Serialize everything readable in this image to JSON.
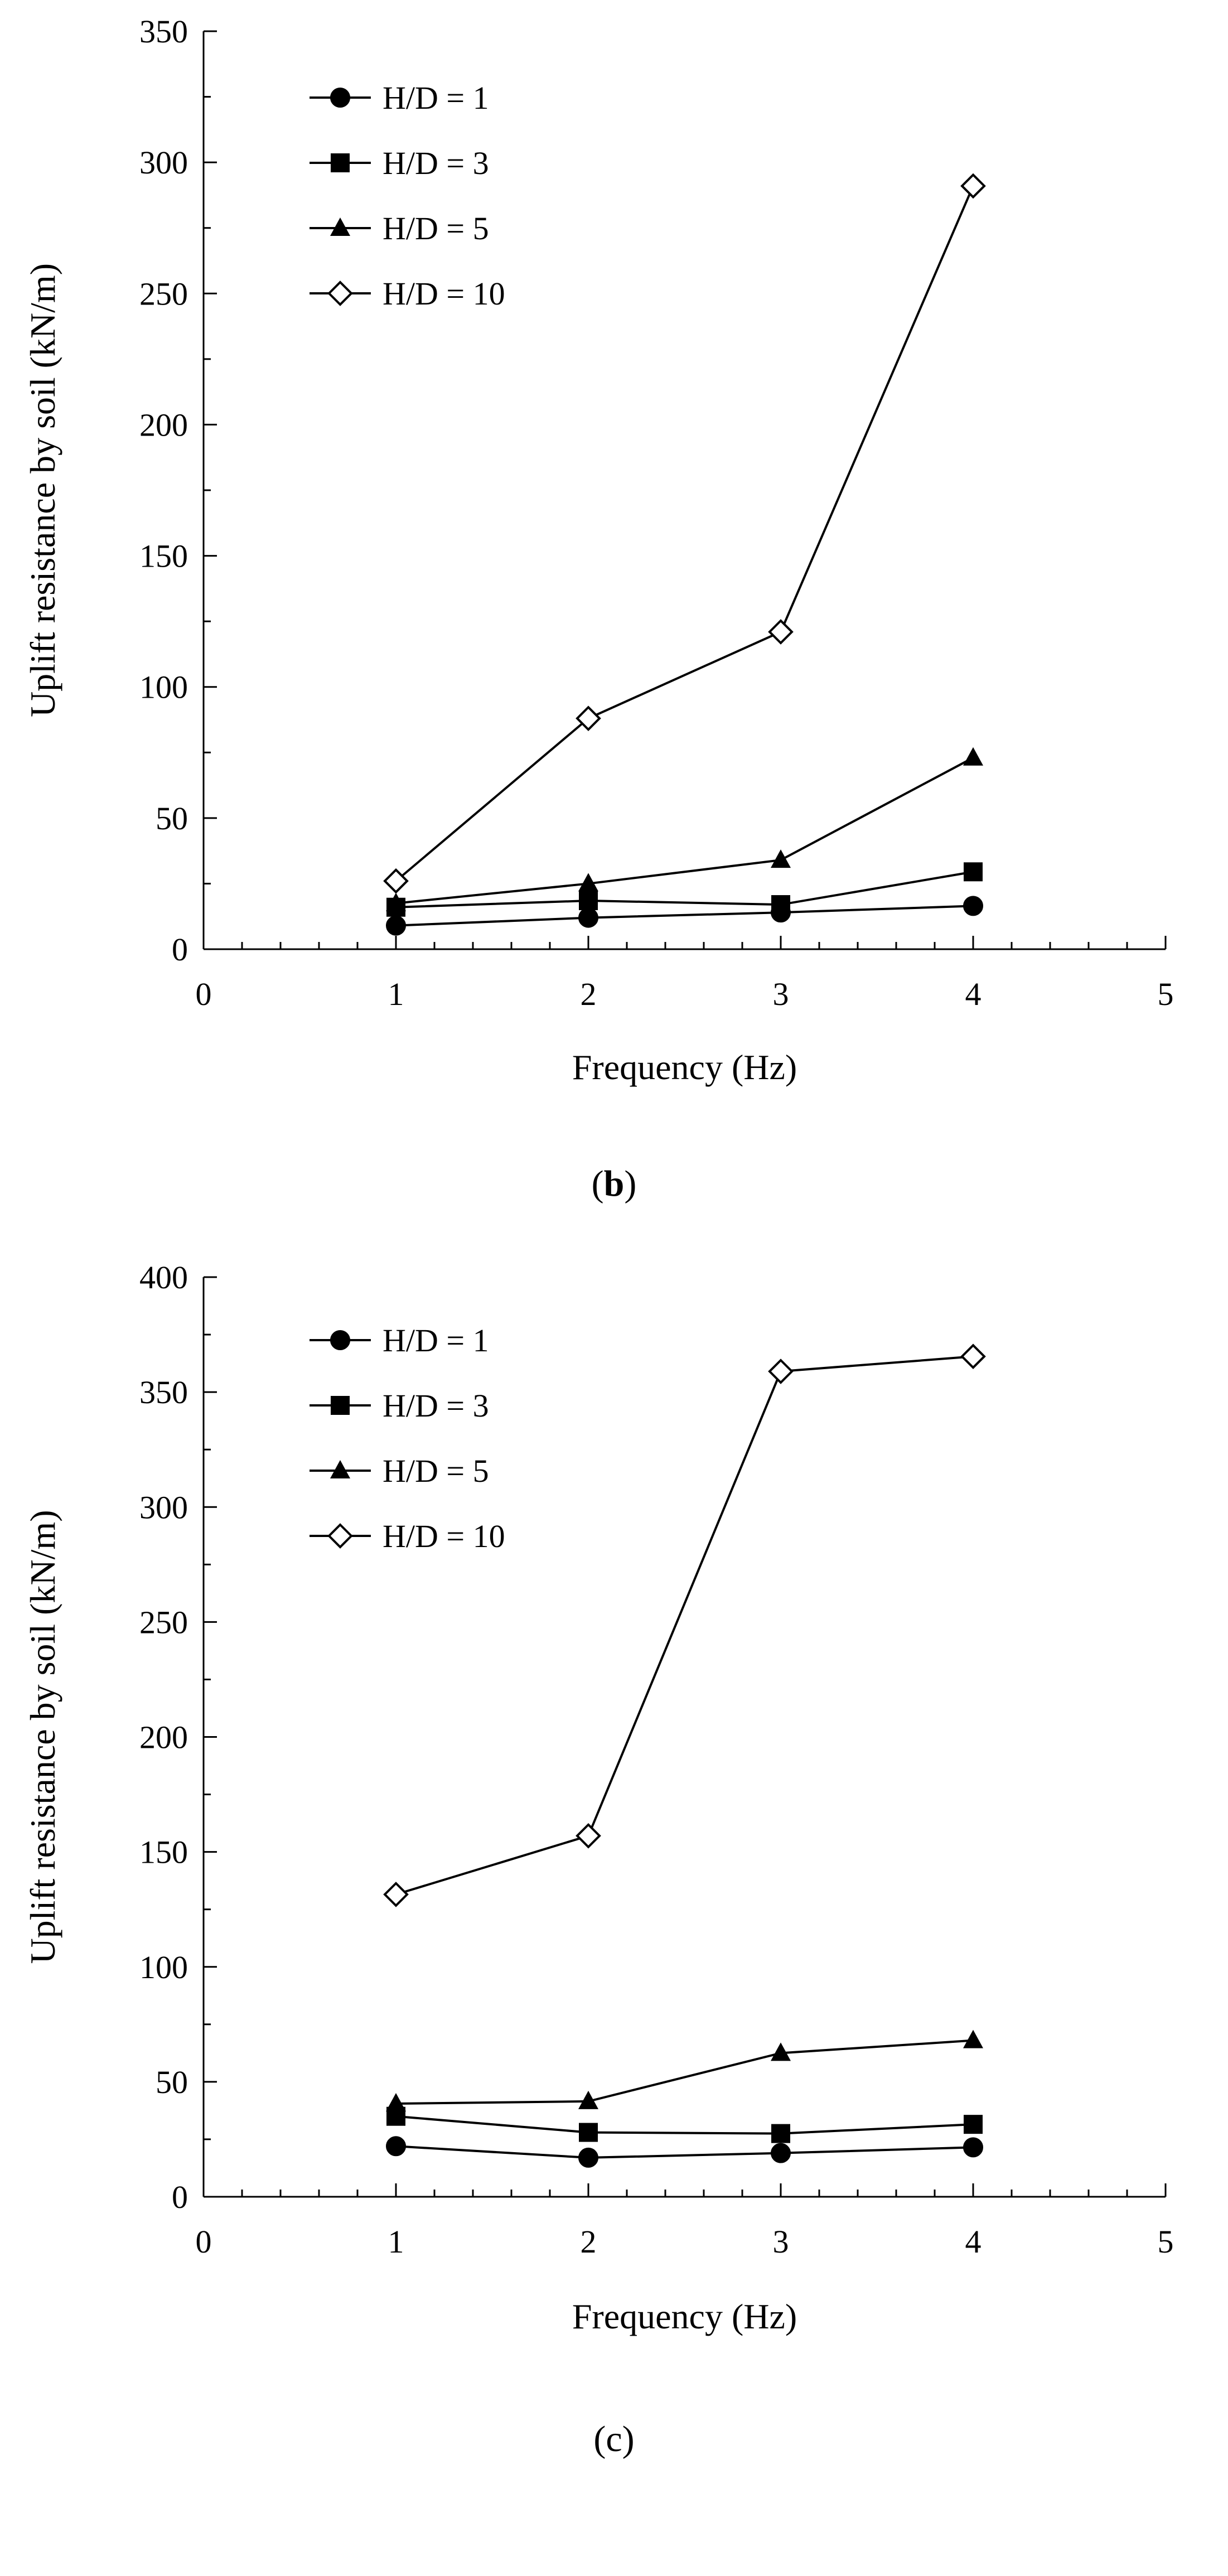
{
  "chart_data": [
    {
      "type": "line",
      "panel_label": "b",
      "title": "",
      "xlabel": "Frequency (Hz)",
      "ylabel": "Uplift resistance by soil (kN/m)",
      "xlim": [
        0,
        5
      ],
      "ylim": [
        0,
        350
      ],
      "xticks": [
        0,
        1,
        2,
        3,
        4,
        5
      ],
      "yticks": [
        0,
        50,
        100,
        150,
        200,
        250,
        300,
        350
      ],
      "grid": false,
      "legend_position": "top-left",
      "x": [
        1,
        2,
        3,
        4
      ],
      "series": [
        {
          "name": "H/D = 1",
          "marker": "circle",
          "values": [
            9,
            12,
            14,
            16.5
          ]
        },
        {
          "name": "H/D = 3",
          "marker": "square",
          "values": [
            16,
            18.5,
            17,
            29.5
          ]
        },
        {
          "name": "H/D = 5",
          "marker": "triangle",
          "values": [
            17.5,
            25,
            34,
            73
          ]
        },
        {
          "name": "H/D = 10",
          "marker": "diamond-open",
          "values": [
            26,
            88,
            121,
            291
          ]
        }
      ]
    },
    {
      "type": "line",
      "panel_label": "c",
      "title": "",
      "xlabel": "Frequency (Hz)",
      "ylabel": "Uplift resistance by soil (kN/m)",
      "xlim": [
        0,
        5
      ],
      "ylim": [
        0,
        400
      ],
      "xticks": [
        0,
        1,
        2,
        3,
        4,
        5
      ],
      "yticks": [
        0,
        50,
        100,
        150,
        200,
        250,
        300,
        350,
        400
      ],
      "grid": false,
      "legend_position": "top-left",
      "x": [
        1,
        2,
        3,
        4
      ],
      "series": [
        {
          "name": "H/D = 1",
          "marker": "circle",
          "values": [
            22,
            17,
            19,
            21.5
          ]
        },
        {
          "name": "H/D = 3",
          "marker": "square",
          "values": [
            35,
            28,
            27.5,
            31.5
          ]
        },
        {
          "name": "H/D = 5",
          "marker": "triangle",
          "values": [
            40.5,
            41.5,
            62.5,
            68
          ]
        },
        {
          "name": "H/D = 10",
          "marker": "diamond-open",
          "values": [
            131.5,
            157,
            359,
            365.5
          ]
        }
      ]
    }
  ]
}
